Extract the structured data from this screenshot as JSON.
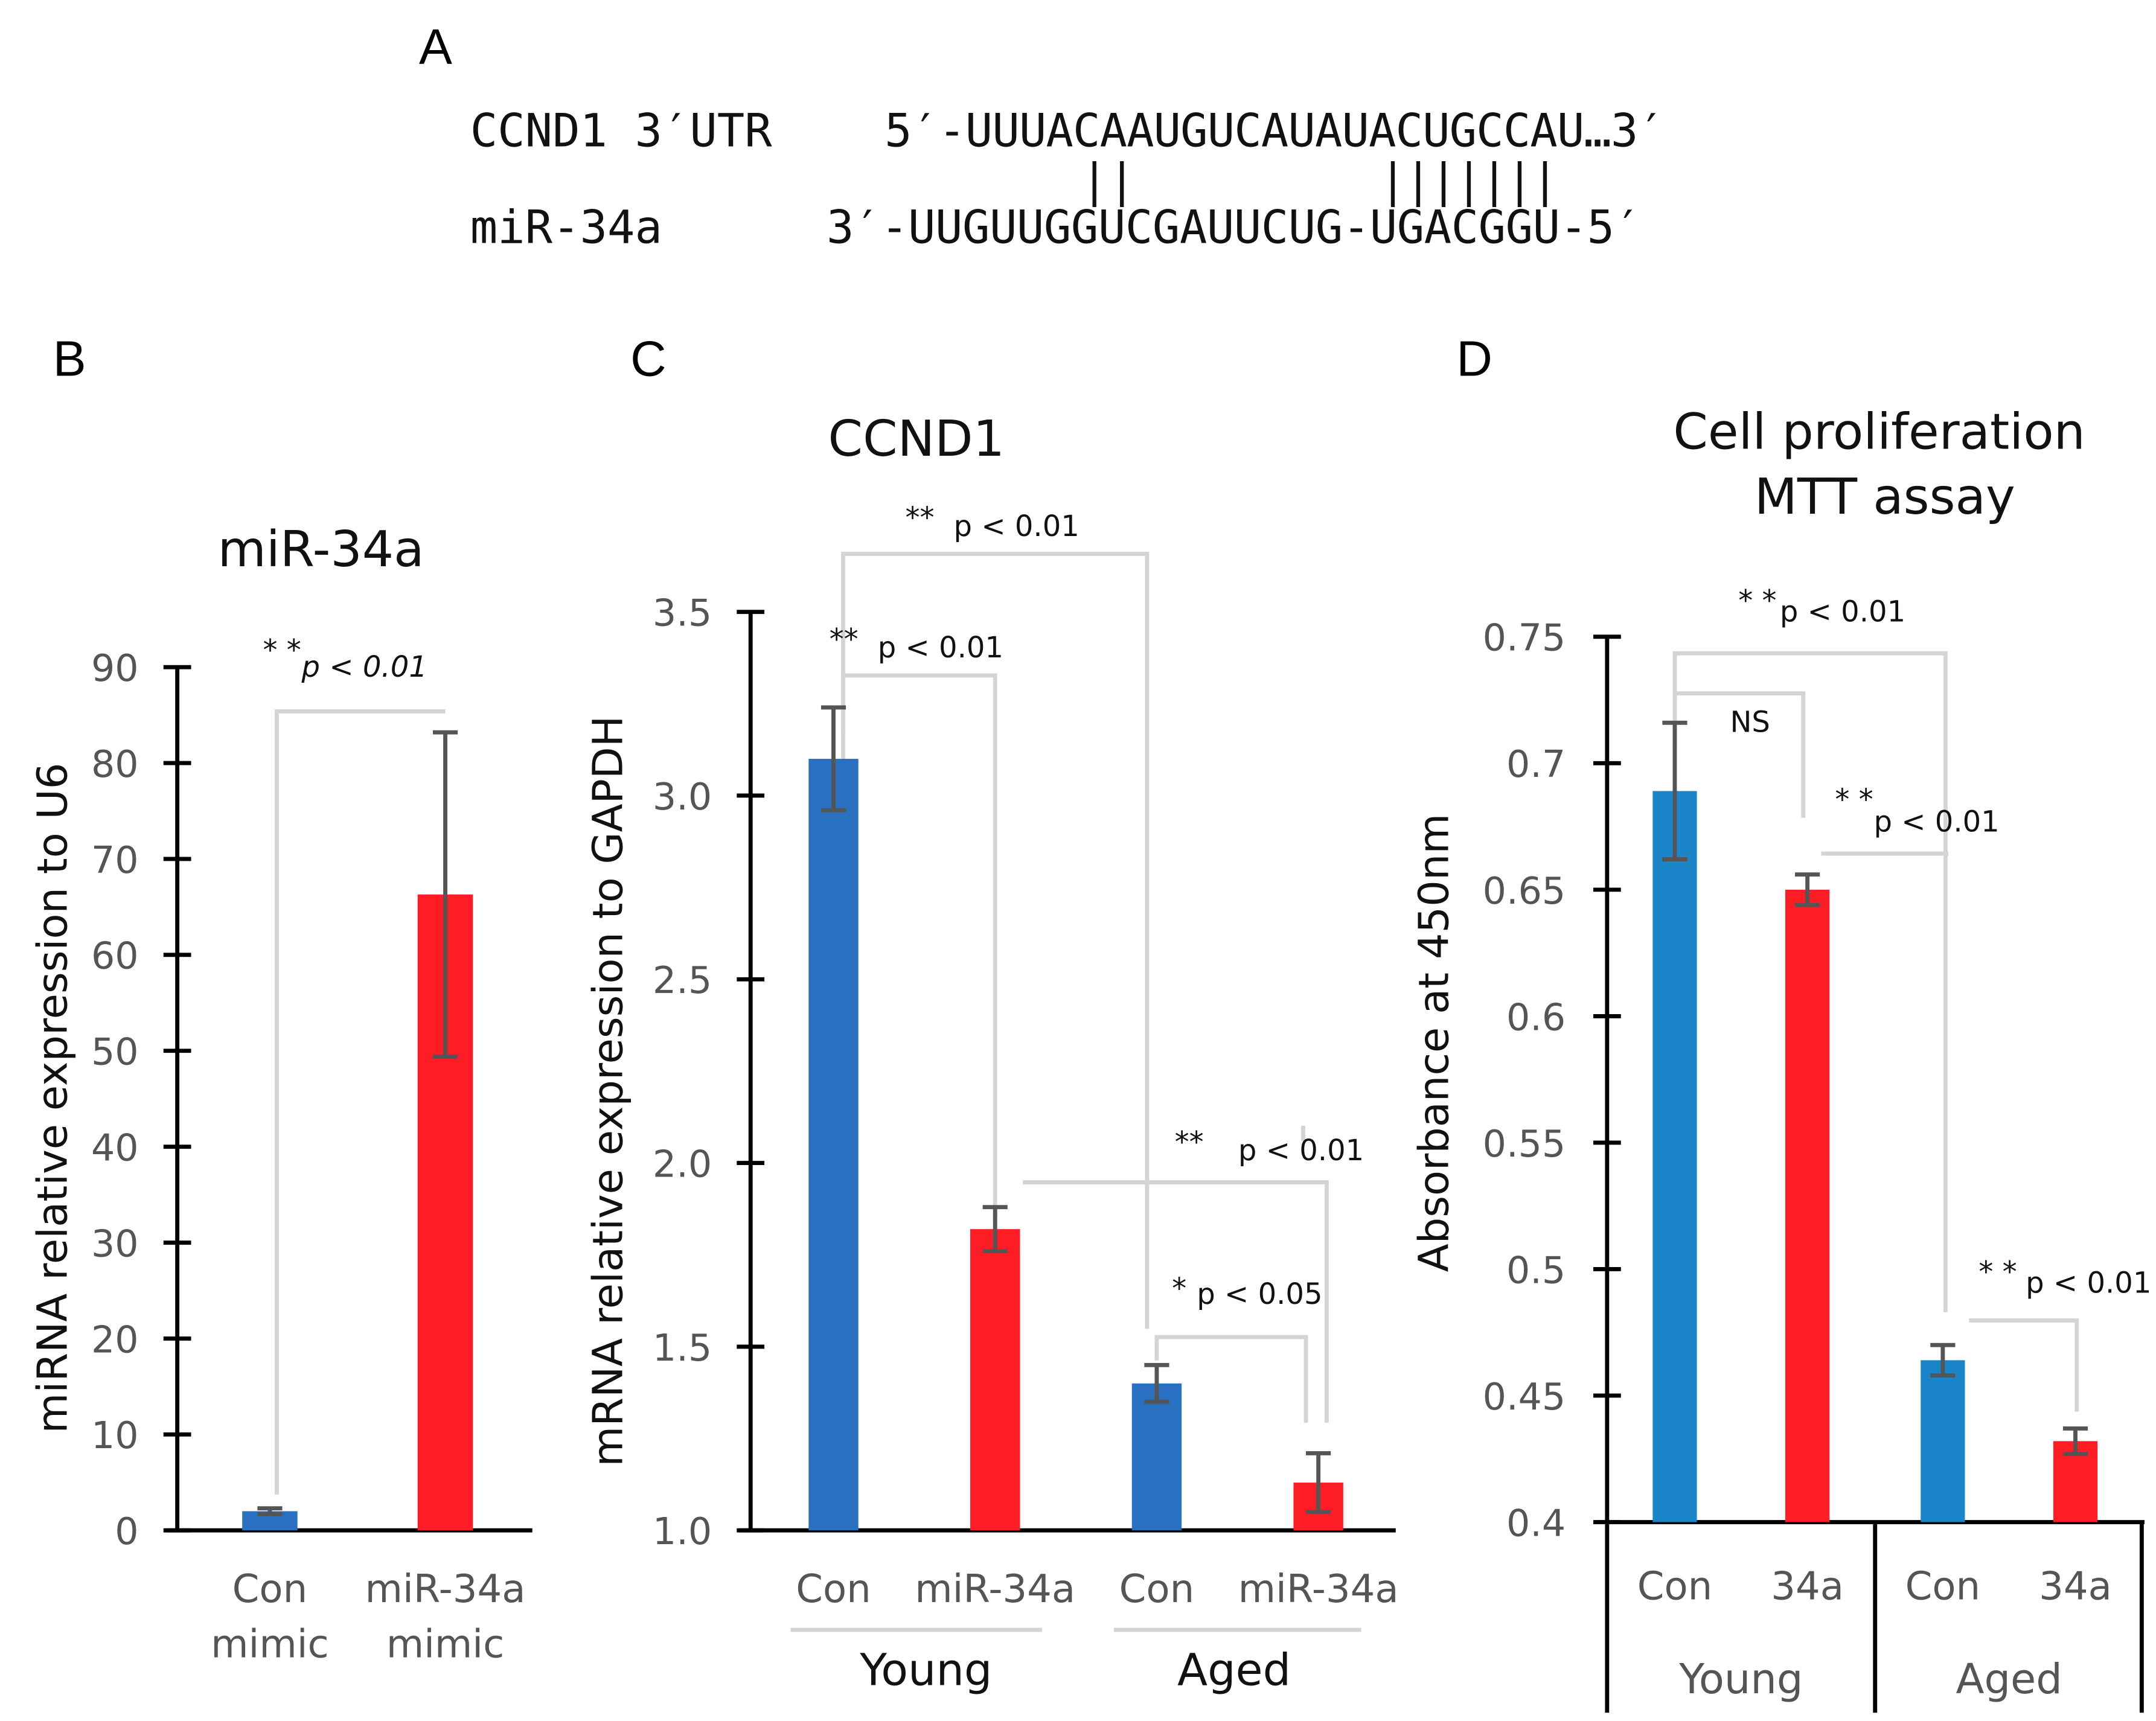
{
  "panel_a": {
    "label": "A",
    "utr_name": "CCND1 3′UTR",
    "utr_seq": "5′-UUUACAAUGUCAUAUACUGCCAU…3′",
    "pairs_left": "||",
    "pairs_right": "|||||||",
    "mir_name": "miR-34a",
    "mir_seq": "3′-UUGUUGGUCGAUUCUG-UGACGGU-5′"
  },
  "colors": {
    "blue": "#2a70c0",
    "blue_d": "#1a85c8",
    "red": "#ff1d25"
  },
  "chart_data": [
    {
      "panel": "B",
      "type": "bar",
      "title": "miR-34a",
      "ylabel": "miRNA relative expression to U6",
      "categories": [
        "Con\nmimic",
        "miR-34a\nmimic"
      ],
      "cat_lines": [
        [
          "Con",
          "mimic"
        ],
        [
          "miR-34a",
          "mimic"
        ]
      ],
      "values": [
        2.0,
        66.3
      ],
      "errors": [
        0.3,
        16.9
      ],
      "ylim": [
        0,
        90
      ],
      "yticks": [
        "0",
        "10",
        "20",
        "30",
        "40",
        "50",
        "60",
        "70",
        "80",
        "90"
      ],
      "significance": [
        {
          "stars": "* *",
          "text": "p < 0.01"
        }
      ]
    },
    {
      "panel": "C",
      "type": "bar",
      "title": "CCND1",
      "ylabel": "mRNA relative expression to GAPDH",
      "categories": [
        "Con",
        "miR-34a",
        "Con",
        "miR-34a"
      ],
      "groups": [
        "Young",
        "Aged"
      ],
      "values": [
        3.1,
        1.82,
        1.4,
        1.13
      ],
      "errors": [
        0.14,
        0.06,
        0.05,
        0.08
      ],
      "ylim": [
        1.0,
        3.5
      ],
      "yticks": [
        "1.0",
        "1.5",
        "2.0",
        "2.5",
        "3.0",
        "3.5"
      ],
      "significance": [
        {
          "stars": "**",
          "text": "p < 0.01"
        },
        {
          "stars": "**",
          "text": "p < 0.01"
        },
        {
          "stars": "**",
          "text": "p < 0.01"
        },
        {
          "stars": "*",
          "text": "p < 0.05"
        }
      ]
    },
    {
      "panel": "D",
      "type": "bar",
      "title": [
        "Cell proliferation",
        "MTT assay"
      ],
      "ylabel": "Absorbance at 450nm",
      "categories": [
        "Con",
        "34a",
        "Con",
        "34a"
      ],
      "groups": [
        "Young",
        "Aged"
      ],
      "values": [
        0.689,
        0.65,
        0.464,
        0.432
      ],
      "errors": [
        0.027,
        0.006,
        0.006,
        0.005
      ],
      "ylim": [
        0.4,
        0.75
      ],
      "yticks": [
        "0.4",
        "0.45",
        "0.5",
        "0.55",
        "0.6",
        "0.65",
        "0.7",
        "0.75"
      ],
      "significance": [
        {
          "stars": "* *",
          "text": "p < 0.01"
        },
        {
          "stars": "",
          "text": "NS"
        },
        {
          "stars": "* *",
          "text": "p < 0.01"
        },
        {
          "stars": "* *",
          "text": "p < 0.01"
        }
      ]
    }
  ]
}
